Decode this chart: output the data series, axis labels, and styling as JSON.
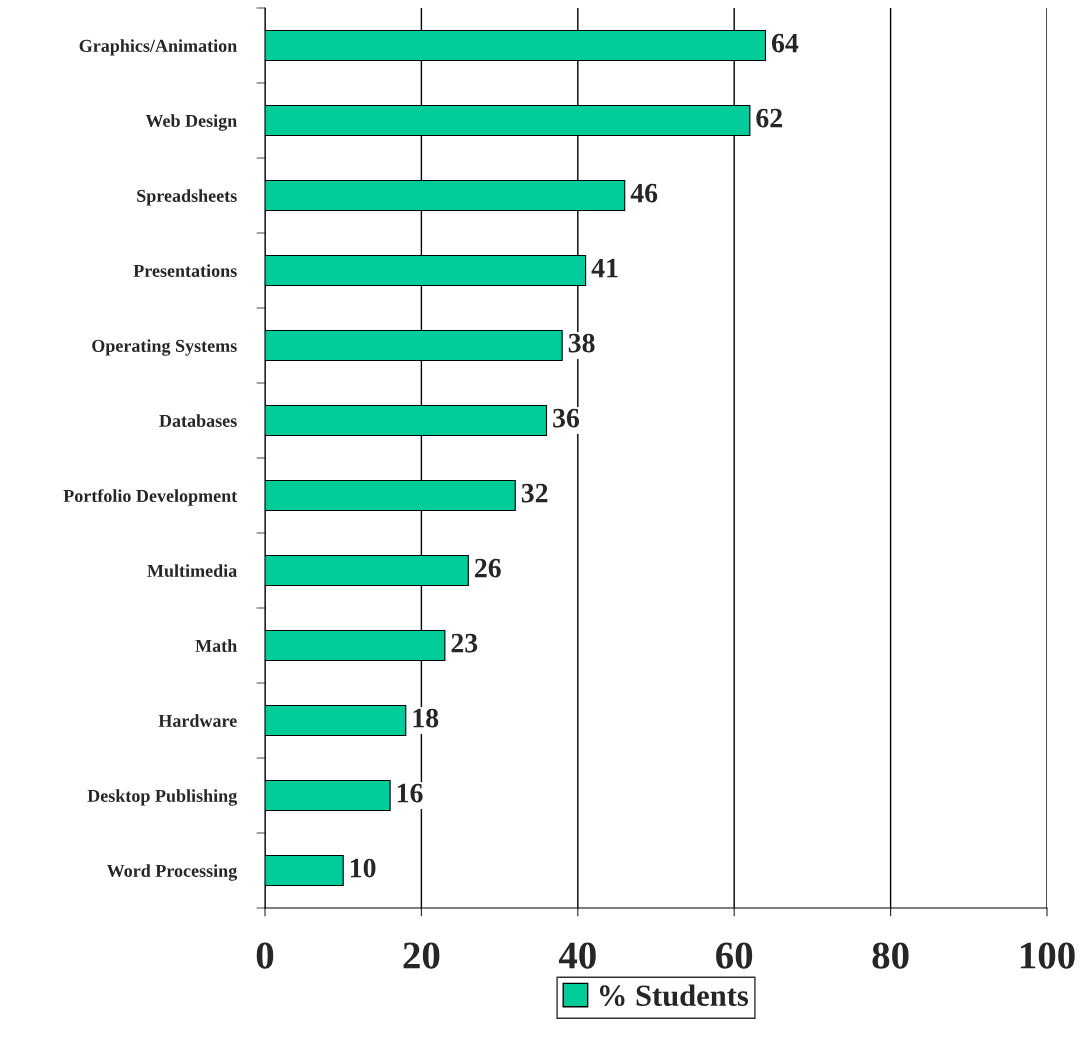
{
  "chart_data": {
    "type": "bar",
    "orientation": "horizontal",
    "categories": [
      "Graphics/Animation",
      "Web Design",
      "Spreadsheets",
      "Presentations",
      "Operating Systems",
      "Databases",
      "Portfolio Development",
      "Multimedia",
      "Math",
      "Hardware",
      "Desktop Publishing",
      "Word Processing"
    ],
    "series": [
      {
        "name": "% Students",
        "color": "#00cc99",
        "values": [
          64,
          62,
          46,
          41,
          38,
          36,
          32,
          26,
          23,
          18,
          16,
          10
        ]
      }
    ],
    "xlim": [
      0,
      100
    ],
    "xticks": [
      0,
      20,
      40,
      60,
      80,
      100
    ],
    "grid": "x",
    "legend": "bottom",
    "data_labels": true
  }
}
